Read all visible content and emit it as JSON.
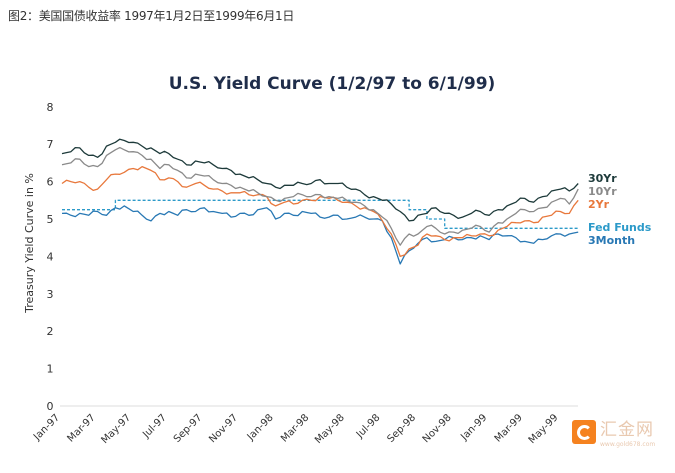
{
  "caption": "图2：美国国债收益率 1997年1月2日至1999年6月1日",
  "watermark": {
    "name": "汇金网",
    "url": "www.gold678.com",
    "color": "#f5821f"
  },
  "chart_data": {
    "type": "line",
    "title": "U.S. Yield Curve (1/2/97 to 6/1/99)",
    "xlabel": "",
    "ylabel": "Treasury Yield Curve in %",
    "ylim": [
      0,
      8
    ],
    "yticks": [
      "0",
      "1",
      "2",
      "3",
      "4",
      "5",
      "6",
      "7",
      "8"
    ],
    "grid": false,
    "legend_position": "right",
    "xticks": [
      "Jan-97",
      "Mar-97",
      "May-97",
      "Jul-97",
      "Sep-97",
      "Nov-97",
      "Jan-98",
      "Mar-98",
      "May-98",
      "Jul-98",
      "Sep-98",
      "Nov-98",
      "Jan-99",
      "Mar-99",
      "May-99"
    ],
    "x_months_from_jan97": [
      0,
      0.5,
      1,
      1.5,
      2,
      2.5,
      3,
      3.5,
      4,
      4.5,
      5,
      5.5,
      6,
      6.5,
      7,
      7.5,
      8,
      8.5,
      9,
      9.5,
      10,
      10.5,
      11,
      11.5,
      12,
      12.5,
      13,
      13.5,
      14,
      14.5,
      15,
      15.5,
      16,
      16.5,
      17,
      17.5,
      18,
      18.5,
      19,
      19.5,
      20,
      20.5,
      21,
      21.5,
      22,
      22.5,
      23,
      23.5,
      24,
      24.5,
      25,
      25.5,
      26,
      26.5,
      27,
      27.5,
      28,
      28.5,
      29
    ],
    "series": [
      {
        "name": "30Yr",
        "color": "#1d3a3a",
        "dashed": false,
        "values": [
          6.75,
          6.8,
          6.9,
          6.7,
          6.65,
          6.95,
          7.05,
          7.1,
          7.05,
          6.95,
          6.9,
          6.75,
          6.75,
          6.6,
          6.45,
          6.55,
          6.5,
          6.45,
          6.35,
          6.3,
          6.2,
          6.1,
          6.05,
          5.95,
          5.85,
          5.9,
          5.9,
          5.95,
          5.95,
          6.05,
          5.95,
          5.95,
          5.85,
          5.8,
          5.65,
          5.6,
          5.5,
          5.4,
          5.2,
          4.95,
          5.1,
          5.15,
          5.3,
          5.15,
          5.1,
          5.05,
          5.15,
          5.2,
          5.1,
          5.25,
          5.35,
          5.45,
          5.55,
          5.45,
          5.6,
          5.75,
          5.8,
          5.75,
          5.95
        ]
      },
      {
        "name": "10Yr",
        "color": "#8a8a8a",
        "dashed": false,
        "values": [
          6.45,
          6.5,
          6.6,
          6.4,
          6.4,
          6.7,
          6.85,
          6.85,
          6.8,
          6.7,
          6.6,
          6.35,
          6.45,
          6.3,
          6.1,
          6.2,
          6.15,
          6.05,
          5.95,
          5.9,
          5.85,
          5.75,
          5.7,
          5.6,
          5.5,
          5.55,
          5.6,
          5.65,
          5.6,
          5.65,
          5.6,
          5.55,
          5.5,
          5.45,
          5.35,
          5.25,
          5.05,
          4.75,
          4.3,
          4.6,
          4.6,
          4.8,
          4.75,
          4.6,
          4.65,
          4.7,
          4.75,
          4.8,
          4.65,
          4.9,
          5.0,
          5.15,
          5.25,
          5.2,
          5.3,
          5.45,
          5.55,
          5.4,
          5.8
        ]
      },
      {
        "name": "2Yr",
        "color": "#e8783c",
        "dashed": false,
        "values": [
          5.95,
          6.0,
          6.0,
          5.85,
          5.8,
          6.05,
          6.2,
          6.25,
          6.35,
          6.4,
          6.3,
          6.05,
          6.1,
          6.0,
          5.85,
          5.95,
          5.9,
          5.8,
          5.75,
          5.7,
          5.7,
          5.65,
          5.65,
          5.6,
          5.35,
          5.45,
          5.4,
          5.5,
          5.5,
          5.6,
          5.55,
          5.5,
          5.45,
          5.35,
          5.3,
          5.2,
          4.95,
          4.6,
          4.0,
          4.2,
          4.3,
          4.6,
          4.55,
          4.45,
          4.5,
          4.5,
          4.55,
          4.6,
          4.55,
          4.7,
          4.8,
          4.9,
          4.95,
          4.9,
          5.05,
          5.1,
          5.2,
          5.15,
          5.5
        ]
      },
      {
        "name": "Fed Funds",
        "color": "#2c9ac9",
        "dashed": true,
        "values": [
          5.25,
          5.25,
          5.25,
          5.25,
          5.25,
          5.25,
          5.5,
          5.5,
          5.5,
          5.5,
          5.5,
          5.5,
          5.5,
          5.5,
          5.5,
          5.5,
          5.5,
          5.5,
          5.5,
          5.5,
          5.5,
          5.5,
          5.5,
          5.5,
          5.5,
          5.5,
          5.5,
          5.5,
          5.5,
          5.5,
          5.5,
          5.5,
          5.5,
          5.5,
          5.5,
          5.5,
          5.5,
          5.5,
          5.5,
          5.25,
          5.25,
          5.0,
          5.0,
          4.75,
          4.75,
          4.75,
          4.75,
          4.75,
          4.75,
          4.75,
          4.75,
          4.75,
          4.75,
          4.75,
          4.75,
          4.75,
          4.75,
          4.75,
          4.75
        ]
      },
      {
        "name": "3Month",
        "color": "#2878b4",
        "dashed": false,
        "values": [
          5.15,
          5.1,
          5.15,
          5.1,
          5.2,
          5.1,
          5.3,
          5.35,
          5.2,
          5.1,
          4.95,
          5.15,
          5.2,
          5.1,
          5.25,
          5.2,
          5.3,
          5.2,
          5.15,
          5.05,
          5.15,
          5.1,
          5.25,
          5.3,
          5.0,
          5.15,
          5.1,
          5.2,
          5.15,
          5.05,
          5.05,
          5.1,
          5.0,
          5.05,
          5.05,
          5.0,
          4.95,
          4.5,
          3.8,
          4.15,
          4.35,
          4.5,
          4.4,
          4.45,
          4.5,
          4.45,
          4.5,
          4.55,
          4.45,
          4.6,
          4.55,
          4.5,
          4.4,
          4.35,
          4.45,
          4.55,
          4.6,
          4.6,
          4.65
        ]
      }
    ]
  }
}
